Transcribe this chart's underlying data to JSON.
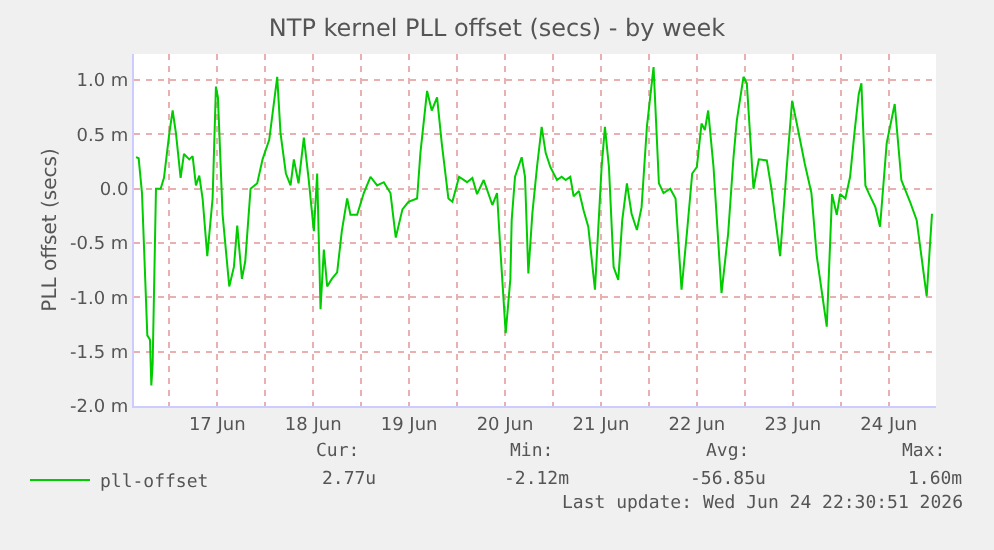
{
  "chart_data": {
    "type": "line",
    "title": "NTP kernel PLL offset (secs) - by week",
    "ylabel": "PLL offset (secs)",
    "xlim": [
      "2026-06-16T15:10",
      "2026-06-24T23:50"
    ],
    "xticks": [
      {
        "value": "2026-06-17T00:00",
        "label": null
      },
      {
        "value": "2026-06-17T12:00",
        "label": "17 Jun"
      },
      {
        "value": "2026-06-18T00:00",
        "label": null
      },
      {
        "value": "2026-06-18T12:00",
        "label": "18 Jun"
      },
      {
        "value": "2026-06-19T00:00",
        "label": null
      },
      {
        "value": "2026-06-19T12:00",
        "label": "19 Jun"
      },
      {
        "value": "2026-06-20T00:00",
        "label": null
      },
      {
        "value": "2026-06-20T12:00",
        "label": "20 Jun"
      },
      {
        "value": "2026-06-21T00:00",
        "label": null
      },
      {
        "value": "2026-06-21T12:00",
        "label": "21 Jun"
      },
      {
        "value": "2026-06-22T00:00",
        "label": null
      },
      {
        "value": "2026-06-22T12:00",
        "label": "22 Jun"
      },
      {
        "value": "2026-06-23T00:00",
        "label": null
      },
      {
        "value": "2026-06-23T12:00",
        "label": "23 Jun"
      },
      {
        "value": "2026-06-24T00:00",
        "label": null
      },
      {
        "value": "2026-06-24T12:00",
        "label": "24 Jun"
      }
    ],
    "ylim": [
      -2.0,
      1.24
    ],
    "yticks": [
      {
        "value": -2.0,
        "label": "-2.0 m"
      },
      {
        "value": -1.5,
        "label": "-1.5 m"
      },
      {
        "value": -1.0,
        "label": "-1.0 m"
      },
      {
        "value": -0.5,
        "label": "-0.5 m"
      },
      {
        "value": 0,
        "label": "0.0"
      },
      {
        "value": 0.5,
        "label": "0.5 m"
      },
      {
        "value": 1.0,
        "label": "1.0 m"
      }
    ],
    "grid": true,
    "legend": "bottom",
    "marker": "none",
    "line_style": "solid",
    "annotations": [
      "Cur:",
      "Min:",
      "Avg:",
      "Max:",
      "2.77u",
      "-2.12m",
      "-56.85u",
      "1.60m",
      "Last update: Wed Jun 24 22:30:51 2026"
    ],
    "series": [
      {
        "name": "pll-offset",
        "color": "#00cc00",
        "x": [
          "2026-06-16T15:40",
          "2026-06-16T16:20",
          "2026-06-16T17:10",
          "2026-06-16T18:30",
          "2026-06-16T19:10",
          "2026-06-16T19:30",
          "2026-06-16T19:50",
          "2026-06-16T20:40",
          "2026-06-16T21:50",
          "2026-06-16T22:40",
          "2026-06-17T00:00",
          "2026-06-17T00:50",
          "2026-06-17T01:40",
          "2026-06-17T02:50",
          "2026-06-17T03:40",
          "2026-06-17T05:00",
          "2026-06-17T05:50",
          "2026-06-17T06:40",
          "2026-06-17T07:30",
          "2026-06-17T08:20",
          "2026-06-17T09:30",
          "2026-06-17T10:50",
          "2026-06-17T11:40",
          "2026-06-17T12:10",
          "2026-06-17T13:20",
          "2026-06-17T15:00",
          "2026-06-17T16:10",
          "2026-06-17T17:00",
          "2026-06-17T18:10",
          "2026-06-17T19:00",
          "2026-06-17T20:20",
          "2026-06-17T22:00",
          "2026-06-17T23:20",
          "2026-06-18T01:00",
          "2026-06-18T03:00",
          "2026-06-18T03:50",
          "2026-06-18T05:10",
          "2026-06-18T06:20",
          "2026-06-18T07:10",
          "2026-06-18T08:20",
          "2026-06-18T09:40",
          "2026-06-18T10:50",
          "2026-06-18T12:10",
          "2026-06-18T13:00",
          "2026-06-18T13:50",
          "2026-06-18T14:40",
          "2026-06-18T15:30",
          "2026-06-18T16:40",
          "2026-06-18T18:00",
          "2026-06-18T19:10",
          "2026-06-18T20:30",
          "2026-06-18T21:20",
          "2026-06-18T23:00",
          "2026-06-19T00:40",
          "2026-06-19T02:20",
          "2026-06-19T04:00",
          "2026-06-19T05:40",
          "2026-06-19T07:20",
          "2026-06-19T08:40",
          "2026-06-19T10:20",
          "2026-06-19T11:50",
          "2026-06-19T14:00",
          "2026-06-19T14:50",
          "2026-06-19T16:30",
          "2026-06-19T17:40",
          "2026-06-19T19:00",
          "2026-06-19T20:10",
          "2026-06-19T21:50",
          "2026-06-19T22:50",
          "2026-06-20T00:30",
          "2026-06-20T02:30",
          "2026-06-20T03:50",
          "2026-06-20T05:00",
          "2026-06-20T06:40",
          "2026-06-20T08:50",
          "2026-06-20T10:00",
          "2026-06-20T10:50",
          "2026-06-20T12:10",
          "2026-06-20T13:20",
          "2026-06-20T13:40",
          "2026-06-20T14:30",
          "2026-06-20T16:10",
          "2026-06-20T17:00",
          "2026-06-20T17:50",
          "2026-06-20T18:50",
          "2026-06-20T20:00",
          "2026-06-20T21:10",
          "2026-06-20T22:10",
          "2026-06-20T23:20",
          "2026-06-21T01:00",
          "2026-06-21T02:10",
          "2026-06-21T03:10",
          "2026-06-21T04:20",
          "2026-06-21T05:10",
          "2026-06-21T06:30",
          "2026-06-21T07:40",
          "2026-06-21T08:50",
          "2026-06-21T10:30",
          "2026-06-21T12:10",
          "2026-06-21T13:00",
          "2026-06-21T14:00",
          "2026-06-21T15:10",
          "2026-06-21T16:20",
          "2026-06-21T17:20",
          "2026-06-21T18:30",
          "2026-06-21T19:40",
          "2026-06-21T21:00",
          "2026-06-21T22:10",
          "2026-06-21T23:30",
          "2026-06-22T01:10",
          "2026-06-22T02:30",
          "2026-06-22T03:40",
          "2026-06-22T05:20",
          "2026-06-22T06:40",
          "2026-06-22T08:10",
          "2026-06-22T09:30",
          "2026-06-22T10:50",
          "2026-06-22T12:00",
          "2026-06-22T13:10",
          "2026-06-22T14:00",
          "2026-06-22T14:50",
          "2026-06-22T16:10",
          "2026-06-22T18:10",
          "2026-06-22T19:50",
          "2026-06-22T21:10",
          "2026-06-22T22:00",
          "2026-06-22T23:40",
          "2026-06-23T00:30",
          "2026-06-23T02:10",
          "2026-06-23T03:30",
          "2026-06-23T05:30",
          "2026-06-23T06:40",
          "2026-06-23T08:50",
          "2026-06-23T10:30",
          "2026-06-23T11:50",
          "2026-06-23T13:00",
          "2026-06-23T15:00",
          "2026-06-23T16:40",
          "2026-06-23T18:00",
          "2026-06-23T20:30",
          "2026-06-23T21:50",
          "2026-06-23T23:00",
          "2026-06-23T23:50",
          "2026-06-24T01:10",
          "2026-06-24T02:20",
          "2026-06-24T03:30",
          "2026-06-24T04:30",
          "2026-06-24T05:10",
          "2026-06-24T06:10",
          "2026-06-24T07:00",
          "2026-06-24T08:40",
          "2026-06-24T09:50",
          "2026-06-24T11:30",
          "2026-06-24T13:30",
          "2026-06-24T15:10",
          "2026-06-24T17:20",
          "2026-06-24T19:00",
          "2026-06-24T21:30",
          "2026-06-24T22:50"
        ],
        "values": [
          0.29,
          0.28,
          -0.04,
          -1.35,
          -1.39,
          -1.81,
          -1.61,
          0.0,
          0.0,
          0.1,
          0.51,
          0.72,
          0.51,
          0.1,
          0.32,
          0.27,
          0.3,
          0.03,
          0.12,
          -0.09,
          -0.62,
          -0.09,
          0.94,
          0.84,
          -0.24,
          -0.9,
          -0.72,
          -0.34,
          -0.83,
          -0.67,
          0.0,
          0.05,
          0.27,
          0.45,
          1.03,
          0.51,
          0.14,
          0.03,
          0.27,
          0.05,
          0.47,
          0.1,
          -0.39,
          0.14,
          -1.11,
          -0.56,
          -0.9,
          -0.83,
          -0.77,
          -0.39,
          -0.09,
          -0.24,
          -0.24,
          -0.04,
          0.11,
          0.03,
          0.06,
          -0.04,
          -0.45,
          -0.19,
          -0.12,
          -0.09,
          0.33,
          0.9,
          0.72,
          0.84,
          0.42,
          -0.09,
          -0.12,
          0.11,
          0.06,
          0.1,
          -0.05,
          0.08,
          -0.15,
          -0.04,
          -0.56,
          -1.33,
          -0.83,
          -0.29,
          0.11,
          0.29,
          0.11,
          -0.78,
          -0.23,
          0.2,
          0.57,
          0.33,
          0.2,
          0.08,
          0.11,
          0.08,
          0.11,
          -0.07,
          -0.02,
          -0.2,
          -0.35,
          -0.93,
          0.2,
          0.57,
          0.2,
          -0.72,
          -0.84,
          -0.29,
          0.05,
          -0.23,
          -0.38,
          -0.17,
          0.57,
          1.12,
          0.05,
          -0.04,
          0.0,
          -0.09,
          -0.93,
          -0.41,
          0.14,
          0.2,
          0.6,
          0.54,
          0.72,
          0.2,
          -0.96,
          -0.41,
          0.29,
          0.63,
          1.03,
          0.97,
          0.0,
          0.27,
          0.26,
          0.0,
          -0.62,
          0.2,
          0.81,
          0.6,
          0.23,
          -0.04,
          -0.62,
          -1.27,
          -0.05,
          -0.24,
          -0.05,
          -0.09,
          0.11,
          0.54,
          0.87,
          0.97,
          0.03,
          -0.04,
          -0.17,
          -0.35,
          0.42,
          0.78,
          0.08,
          -0.12,
          -0.29,
          -0.99,
          -0.23
        ]
      }
    ]
  }
}
